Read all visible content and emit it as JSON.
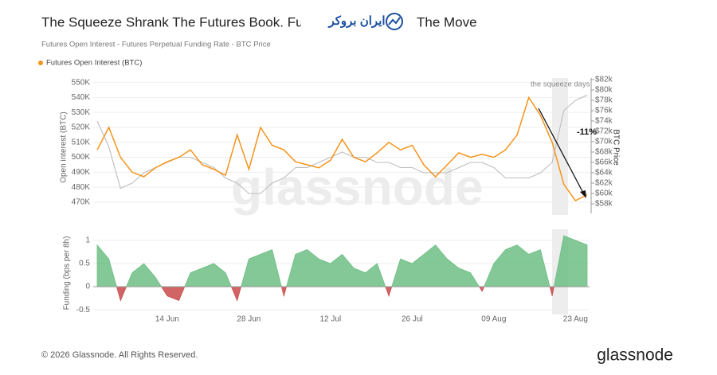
{
  "header": {
    "title_left": "The Squeeze Shrank The Futures Book. Fun",
    "title_right": "The Move",
    "logo": "ایران بروکر",
    "subtitle": "Futures Open Interest - Futures Perpetual Funding Rate - BTC Price"
  },
  "chart_data": [
    {
      "type": "line",
      "ylabel": "Open interest (BTC)",
      "y2label": "BTC Price",
      "legend": "top-left",
      "grid": true,
      "watermark": "glassnode",
      "annotations": [
        "the squeeze days",
        "-11%"
      ],
      "ylim": [
        462500,
        553000
      ],
      "yticks": [
        {
          "value": 470000,
          "label": "470K"
        },
        {
          "value": 480000,
          "label": "480K"
        },
        {
          "value": 490000,
          "label": "490K"
        },
        {
          "value": 500000,
          "label": "500K"
        },
        {
          "value": 510000,
          "label": "510K"
        },
        {
          "value": 520000,
          "label": "520K"
        },
        {
          "value": 530000,
          "label": "530K"
        },
        {
          "value": 540000,
          "label": "540K"
        },
        {
          "value": 550000,
          "label": "550K"
        }
      ],
      "y2lim": [
        56150,
        82300
      ],
      "y2ticks": [
        {
          "value": 58000,
          "label": "$58k"
        },
        {
          "value": 60000,
          "label": "$60k"
        },
        {
          "value": 62000,
          "label": "$62k"
        },
        {
          "value": 64000,
          "label": "$64k"
        },
        {
          "value": 66000,
          "label": "$66k"
        },
        {
          "value": 68000,
          "label": "$68k"
        },
        {
          "value": 70000,
          "label": "$70k"
        },
        {
          "value": 72000,
          "label": "$72k"
        },
        {
          "value": 74000,
          "label": "$74k"
        },
        {
          "value": 76000,
          "label": "$76k"
        },
        {
          "value": 78000,
          "label": "$78k"
        },
        {
          "value": 80000,
          "label": "$80k"
        },
        {
          "value": 82000,
          "label": "$82k"
        }
      ],
      "series": [
        {
          "name": "Futures Open Interest (BTC)",
          "color": "#f7931a",
          "values": [
            505000,
            520000,
            500000,
            490000,
            487000,
            493000,
            497000,
            500000,
            505000,
            495000,
            492000,
            488000,
            515000,
            492000,
            520000,
            508000,
            505000,
            497000,
            495000,
            493000,
            498000,
            512000,
            500000,
            497000,
            503000,
            510000,
            505000,
            508000,
            495000,
            487000,
            495000,
            503000,
            500000,
            502000,
            500000,
            505000,
            515000,
            540000,
            528000,
            510000,
            482000,
            471000,
            475000
          ]
        },
        {
          "color": "#bdbdbd",
          "axis": "y2",
          "values": [
            74000,
            69000,
            61000,
            62000,
            64000,
            65000,
            66000,
            67000,
            67000,
            66000,
            65000,
            63000,
            62000,
            60000,
            60000,
            62000,
            63000,
            65000,
            65000,
            66000,
            67000,
            68000,
            67000,
            67000,
            66000,
            66000,
            65000,
            65000,
            64000,
            64000,
            64000,
            65000,
            66000,
            66000,
            65000,
            63000,
            63000,
            63000,
            64000,
            66000,
            76000,
            78000,
            79000
          ]
        }
      ]
    },
    {
      "type": "area",
      "ylabel": "Funding (bps per 8h)",
      "color": "#6dbf84",
      "negative_color": "#c94a4a",
      "categories": [
        null,
        null,
        null,
        null,
        null,
        null,
        "14 Jun",
        null,
        null,
        null,
        null,
        null,
        null,
        "28 Jun",
        null,
        null,
        null,
        null,
        null,
        null,
        "12 Jul",
        null,
        null,
        null,
        null,
        null,
        null,
        "26 Jul",
        null,
        null,
        null,
        null,
        null,
        null,
        "09 Aug",
        null,
        null,
        null,
        null,
        null,
        null,
        "23 Aug",
        null
      ],
      "values": [
        0.9,
        0.6,
        -0.3,
        0.3,
        0.5,
        0.2,
        -0.2,
        -0.3,
        0.3,
        0.4,
        0.5,
        0.3,
        -0.3,
        0.6,
        0.7,
        0.8,
        -0.2,
        0.7,
        0.8,
        0.6,
        0.5,
        0.7,
        0.4,
        0.3,
        0.5,
        -0.2,
        0.6,
        0.5,
        0.7,
        0.9,
        0.6,
        0.4,
        0.3,
        -0.1,
        0.5,
        0.8,
        0.9,
        0.7,
        0.8,
        -0.2,
        1.1,
        1.0,
        0.9
      ],
      "ylim": [
        -0.6,
        1.17
      ],
      "yticks": [
        -0.5,
        0,
        0.5,
        1
      ]
    }
  ],
  "footer": {
    "copyright": "© 2026 Glassnode. All Rights Reserved.",
    "brand": "glassnode"
  }
}
